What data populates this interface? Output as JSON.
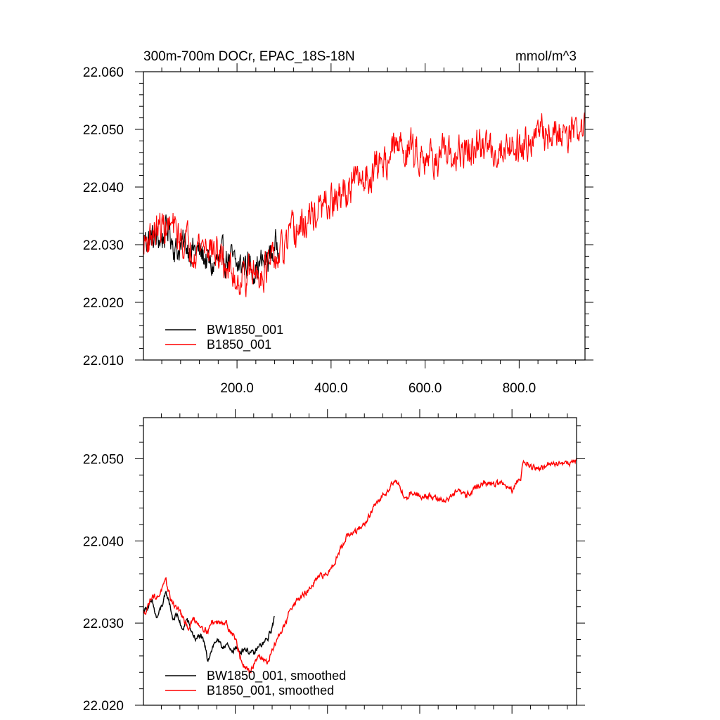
{
  "chart_data": [
    {
      "type": "line",
      "title": "300m-700m DOCr, EPAC_18S-18N",
      "units": "mmol/m^3",
      "xlabel": "",
      "ylabel": "",
      "xlim": [
        1,
        940
      ],
      "ylim": [
        22.01,
        22.06
      ],
      "xticks": [
        200,
        400,
        600,
        800
      ],
      "xtick_labels": [
        "200.0",
        "400.0",
        "600.0",
        "800.0"
      ],
      "yticks": [
        22.01,
        22.02,
        22.03,
        22.04,
        22.05,
        22.06
      ],
      "ytick_labels": [
        "22.010",
        "22.020",
        "22.030",
        "22.040",
        "22.050",
        "22.060"
      ],
      "legend_position": "bottom-left",
      "grid": false,
      "series": [
        {
          "name": "BW1850_001",
          "color": "#000000",
          "noise": 0.0022,
          "x": [
            1,
            20,
            40,
            55,
            70,
            90,
            110,
            130,
            145,
            160,
            180,
            200,
            220,
            240,
            260,
            280,
            290
          ],
          "y": [
            22.031,
            22.031,
            22.031,
            22.033,
            22.029,
            22.03,
            22.029,
            22.028,
            22.026,
            22.027,
            22.028,
            22.026,
            22.027,
            22.026,
            22.027,
            22.029,
            22.031
          ]
        },
        {
          "name": "B1850_001",
          "color": "#ff0000",
          "noise": 0.0025,
          "x": [
            1,
            20,
            40,
            60,
            80,
            100,
            120,
            140,
            160,
            180,
            200,
            220,
            240,
            260,
            280,
            300,
            320,
            340,
            360,
            380,
            400,
            420,
            440,
            460,
            480,
            500,
            520,
            540,
            560,
            580,
            600,
            620,
            640,
            660,
            680,
            700,
            720,
            740,
            760,
            780,
            800,
            820,
            840,
            860,
            880,
            900,
            920,
            940
          ],
          "y": [
            22.03,
            22.032,
            22.033,
            22.033,
            22.031,
            22.03,
            22.03,
            22.03,
            22.028,
            22.026,
            22.024,
            22.025,
            22.025,
            22.026,
            22.027,
            22.029,
            22.032,
            22.033,
            22.035,
            22.036,
            22.037,
            22.038,
            22.04,
            22.041,
            22.042,
            22.044,
            22.045,
            22.047,
            22.047,
            22.046,
            22.046,
            22.045,
            22.045,
            22.045,
            22.046,
            22.046,
            22.047,
            22.047,
            22.046,
            22.048,
            22.047,
            22.049,
            22.049,
            22.049,
            22.049,
            22.05,
            22.05,
            22.05
          ]
        }
      ]
    },
    {
      "type": "line",
      "title": "",
      "xlabel": "",
      "ylabel": "",
      "xlim": [
        1,
        940
      ],
      "ylim": [
        22.02,
        22.055
      ],
      "xticks": [
        200,
        400,
        600,
        800
      ],
      "xtick_labels": [],
      "yticks": [
        22.02,
        22.03,
        22.04,
        22.05
      ],
      "ytick_labels": [
        "22.020",
        "22.030",
        "22.040",
        "22.050"
      ],
      "legend_position": "bottom-left",
      "grid": false,
      "series": [
        {
          "name": "BW1850_001, smoothed",
          "color": "#000000",
          "noise": 0.0003,
          "x": [
            1,
            10,
            20,
            30,
            40,
            50,
            55,
            65,
            75,
            85,
            95,
            105,
            115,
            125,
            135,
            140,
            150,
            160,
            170,
            180,
            190,
            200,
            210,
            220,
            230,
            240,
            250,
            260,
            270,
            280,
            285
          ],
          "y": [
            22.0315,
            22.032,
            22.0325,
            22.0305,
            22.032,
            22.0335,
            22.033,
            22.0305,
            22.031,
            22.029,
            22.0305,
            22.029,
            22.028,
            22.0285,
            22.027,
            22.0255,
            22.027,
            22.028,
            22.027,
            22.0275,
            22.0265,
            22.027,
            22.0265,
            22.027,
            22.0265,
            22.0262,
            22.027,
            22.0275,
            22.028,
            22.0295,
            22.0308
          ]
        },
        {
          "name": "B1850_001, smoothed",
          "color": "#ff0000",
          "noise": 0.0003,
          "x": [
            1,
            10,
            20,
            30,
            40,
            50,
            60,
            70,
            80,
            90,
            100,
            110,
            120,
            130,
            140,
            150,
            160,
            170,
            180,
            190,
            200,
            210,
            220,
            230,
            240,
            250,
            260,
            270,
            280,
            290,
            300,
            310,
            320,
            340,
            360,
            380,
            400,
            420,
            440,
            460,
            480,
            500,
            520,
            540,
            550,
            560,
            570,
            580,
            600,
            620,
            640,
            660,
            680,
            700,
            720,
            740,
            760,
            780,
            800,
            820,
            825,
            840,
            860,
            880,
            900,
            920,
            940
          ],
          "y": [
            22.031,
            22.032,
            22.0335,
            22.033,
            22.034,
            22.035,
            22.033,
            22.032,
            22.0315,
            22.03,
            22.0295,
            22.0305,
            22.03,
            22.0295,
            22.029,
            22.0302,
            22.03,
            22.0303,
            22.03,
            22.029,
            22.0282,
            22.026,
            22.0245,
            22.024,
            22.025,
            22.0262,
            22.0255,
            22.0252,
            22.0265,
            22.028,
            22.029,
            22.03,
            22.032,
            22.033,
            22.034,
            22.0355,
            22.036,
            22.038,
            22.0405,
            22.041,
            22.042,
            22.044,
            22.0455,
            22.047,
            22.0475,
            22.046,
            22.045,
            22.046,
            22.0455,
            22.0455,
            22.045,
            22.045,
            22.046,
            22.0455,
            22.0465,
            22.047,
            22.047,
            22.047,
            22.046,
            22.048,
            22.05,
            22.049,
            22.0488,
            22.0492,
            22.0495,
            22.0495,
            22.0498
          ]
        }
      ]
    }
  ]
}
